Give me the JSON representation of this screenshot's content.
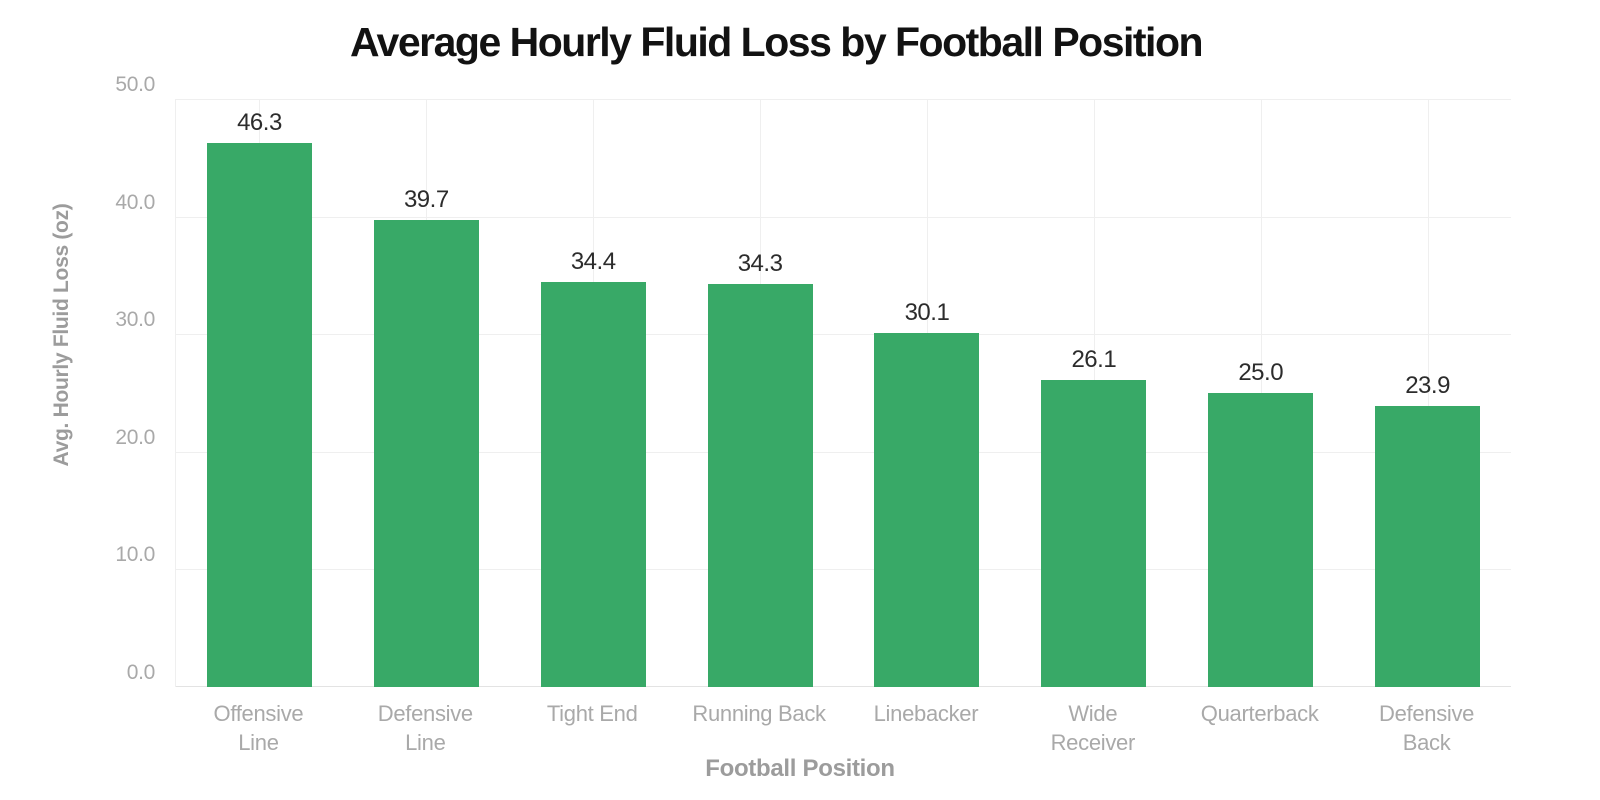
{
  "chart_data": {
    "type": "bar",
    "title": "Average Hourly Fluid Loss by Football Position",
    "xlabel": "Football Position",
    "ylabel": "Avg. Hourly Fluid Loss (oz)",
    "categories": [
      "Offensive Line",
      "Defensive Line",
      "Tight End",
      "Running Back",
      "Linebacker",
      "Wide Receiver",
      "Quarterback",
      "Defensive Back"
    ],
    "category_label_lines": [
      [
        "Offensive",
        "Line"
      ],
      [
        "Defensive",
        "Line"
      ],
      [
        "Tight End"
      ],
      [
        "Running Back"
      ],
      [
        "Linebacker"
      ],
      [
        "Wide",
        "Receiver"
      ],
      [
        "Quarterback"
      ],
      [
        "Defensive",
        "Back"
      ]
    ],
    "values": [
      46.3,
      39.7,
      34.4,
      34.3,
      30.1,
      26.1,
      25.0,
      23.9
    ],
    "value_labels": [
      "46.3",
      "39.7",
      "34.4",
      "34.3",
      "30.1",
      "26.1",
      "25.0",
      "23.9"
    ],
    "ylim": [
      0,
      50
    ],
    "yticks": [
      0,
      10,
      20,
      30,
      40,
      50
    ],
    "ytick_labels": [
      "0.0",
      "10.0",
      "20.0",
      "30.0",
      "40.0",
      "50.0"
    ],
    "grid": true,
    "legend": false,
    "colors": {
      "bar": "#38a967",
      "grid": "#efefef",
      "axis_line": "#e3e3e3",
      "tick_label": "#a9a9a9",
      "axis_title": "#9c9c9c",
      "value_label": "#2c2c2c",
      "title": "#121212",
      "background": "#ffffff"
    }
  }
}
